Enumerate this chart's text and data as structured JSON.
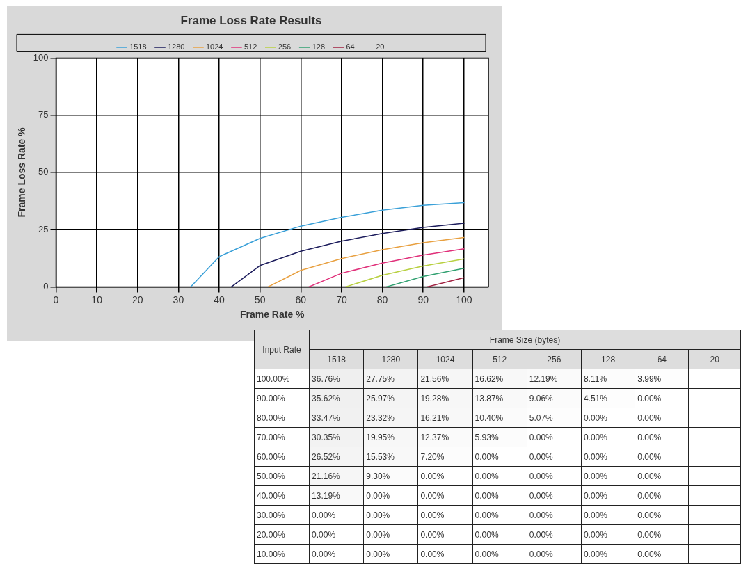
{
  "chart_data": [
    {
      "type": "line",
      "title": "Frame Loss Rate Results",
      "xlabel": "Frame Rate %",
      "ylabel": "Frame Loss Rate %",
      "xlim": [
        0,
        106
      ],
      "xticks": [
        0,
        10,
        20,
        30,
        40,
        50,
        60,
        70,
        80,
        90,
        100
      ],
      "ylim": [
        0,
        100
      ],
      "yticks": [
        0,
        25,
        50,
        75,
        100
      ],
      "grid": true,
      "legend": "top",
      "marker": "none",
      "line_style": "solid",
      "series": [
        {
          "name": "1518",
          "color": "#3aa0d8",
          "x": [
            33,
            40,
            50,
            60,
            70,
            80,
            90,
            100
          ],
          "values": [
            0,
            13.19,
            21.16,
            26.52,
            30.35,
            33.47,
            35.62,
            36.76
          ]
        },
        {
          "name": "1280",
          "color": "#1c1c5c",
          "x": [
            43,
            50,
            60,
            70,
            80,
            90,
            100
          ],
          "values": [
            0,
            9.3,
            15.53,
            19.95,
            23.32,
            25.97,
            27.75
          ]
        },
        {
          "name": "1024",
          "color": "#e8a040",
          "x": [
            52,
            60,
            70,
            80,
            90,
            100
          ],
          "values": [
            0,
            7.2,
            12.37,
            16.21,
            19.28,
            21.56
          ]
        },
        {
          "name": "512",
          "color": "#e0307a",
          "x": [
            62,
            70,
            80,
            90,
            100
          ],
          "values": [
            0,
            5.93,
            10.4,
            13.87,
            16.62
          ]
        },
        {
          "name": "256",
          "color": "#b8d040",
          "x": [
            71,
            80,
            90,
            100
          ],
          "values": [
            0,
            5.07,
            9.06,
            12.19
          ]
        },
        {
          "name": "128",
          "color": "#30a070",
          "x": [
            81,
            90,
            100
          ],
          "values": [
            0,
            4.51,
            8.11
          ]
        },
        {
          "name": "64",
          "color": "#a02040",
          "x": [
            91,
            100
          ],
          "values": [
            0,
            3.99
          ]
        },
        {
          "name": "20"
        }
      ]
    },
    {
      "type": "heatmap",
      "xlabel": "Frame Size (bytes)",
      "ylabel": "Input Rate",
      "categories": [
        "1518",
        "1280",
        "1024",
        "512",
        "256",
        "128",
        "64",
        "20"
      ],
      "y_categories": [
        "100.00%",
        "90.00%",
        "80.00%",
        "70.00%",
        "60.00%",
        "50.00%",
        "40.00%",
        "30.00%",
        "20.00%",
        "10.00%"
      ],
      "cells": [
        [
          36.76,
          27.75,
          21.56,
          16.62,
          12.19,
          8.11,
          3.99,
          null
        ],
        [
          35.62,
          25.97,
          19.28,
          13.87,
          9.06,
          4.51,
          0,
          null
        ],
        [
          33.47,
          23.32,
          16.21,
          10.4,
          5.07,
          0,
          0,
          null
        ],
        [
          30.35,
          19.95,
          12.37,
          5.93,
          0,
          0,
          0,
          null
        ],
        [
          26.52,
          15.53,
          7.2,
          0,
          0,
          0,
          0,
          null
        ],
        [
          21.16,
          9.3,
          0,
          0,
          0,
          0,
          0,
          null
        ],
        [
          13.19,
          0,
          0,
          0,
          0,
          0,
          0,
          null
        ],
        [
          0,
          0,
          0,
          0,
          0,
          0,
          0,
          null
        ],
        [
          0,
          0,
          0,
          0,
          0,
          0,
          0,
          null
        ],
        [
          0,
          0,
          0,
          0,
          0,
          0,
          0,
          null
        ]
      ],
      "cell_labels": [
        [
          "36.76%",
          "27.75%",
          "21.56%",
          "16.62%",
          "12.19%",
          "8.11%",
          "3.99%",
          null
        ],
        [
          "35.62%",
          "25.97%",
          "19.28%",
          "13.87%",
          "9.06%",
          "4.51%",
          "0.00%",
          null
        ],
        [
          "33.47%",
          "23.32%",
          "16.21%",
          "10.40%",
          "5.07%",
          "0.00%",
          "0.00%",
          null
        ],
        [
          "30.35%",
          "19.95%",
          "12.37%",
          "5.93%",
          "0.00%",
          "0.00%",
          "0.00%",
          null
        ],
        [
          "26.52%",
          "15.53%",
          "7.20%",
          "0.00%",
          "0.00%",
          "0.00%",
          "0.00%",
          null
        ],
        [
          "21.16%",
          "9.30%",
          "0.00%",
          "0.00%",
          "0.00%",
          "0.00%",
          "0.00%",
          null
        ],
        [
          "13.19%",
          "0.00%",
          "0.00%",
          "0.00%",
          "0.00%",
          "0.00%",
          "0.00%",
          null
        ],
        [
          "0.00%",
          "0.00%",
          "0.00%",
          "0.00%",
          "0.00%",
          "0.00%",
          "0.00%",
          null
        ],
        [
          "0.00%",
          "0.00%",
          "0.00%",
          "0.00%",
          "0.00%",
          "0.00%",
          "0.00%",
          null
        ],
        [
          "0.00%",
          "0.00%",
          "0.00%",
          "0.00%",
          "0.00%",
          "0.00%",
          "0.00%",
          null
        ]
      ]
    }
  ]
}
